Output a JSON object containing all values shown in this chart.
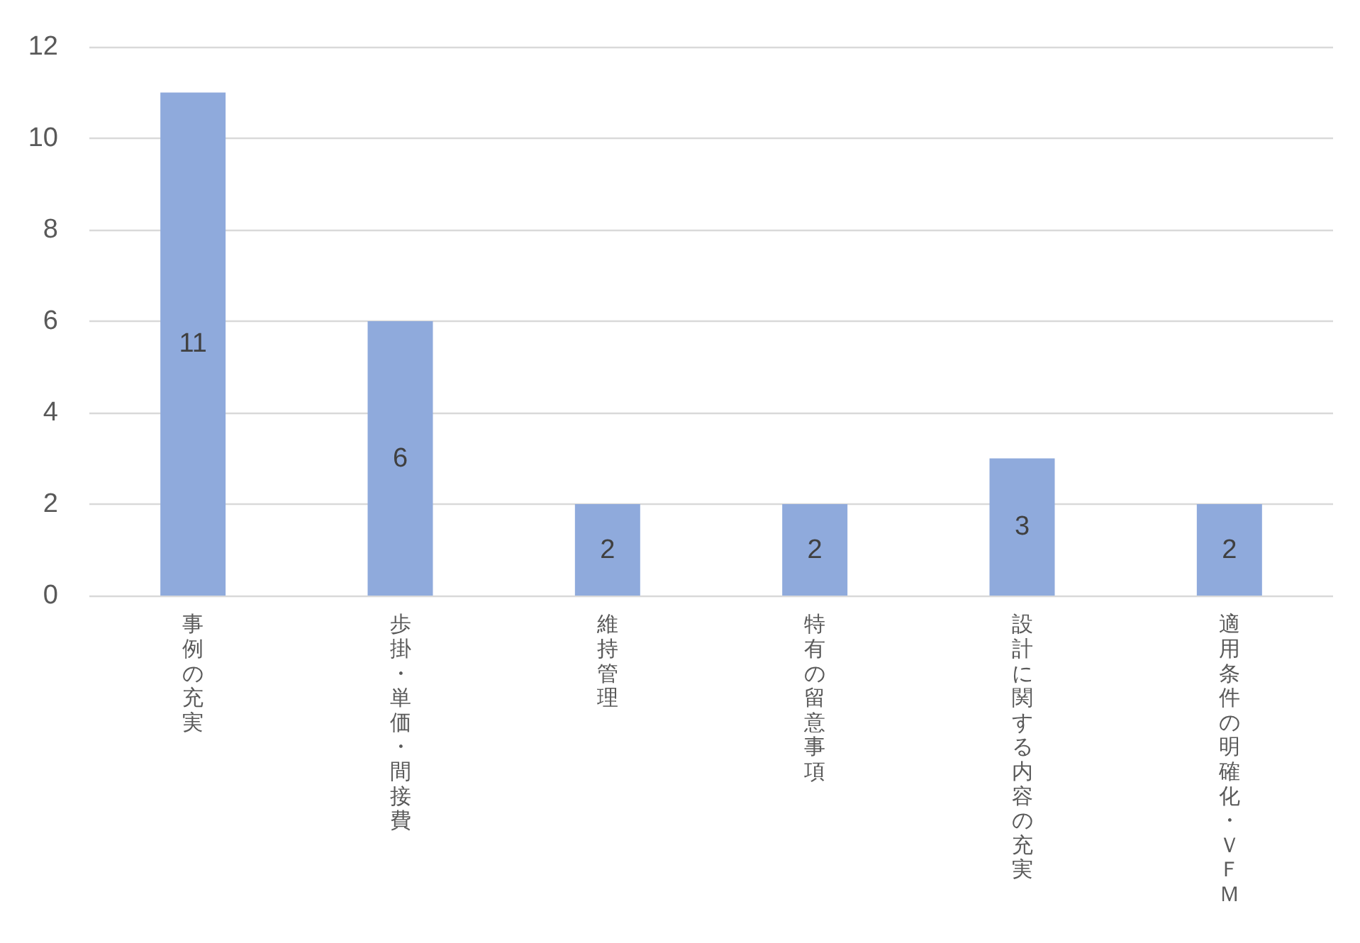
{
  "chart_data": {
    "type": "bar",
    "categories": [
      "事例の充実",
      "歩掛・単価・間接費",
      "維持管理",
      "特有の留意事項",
      "設計に関する内容の充実",
      "適用条件の明確化・ＶＦＭ"
    ],
    "values": [
      11,
      6,
      2,
      2,
      3,
      2
    ],
    "color": "#8faadc",
    "ylim": [
      0,
      12
    ],
    "yticks": [
      0,
      2,
      4,
      6,
      8,
      10,
      12
    ],
    "grid": "y",
    "data_labels": true
  }
}
